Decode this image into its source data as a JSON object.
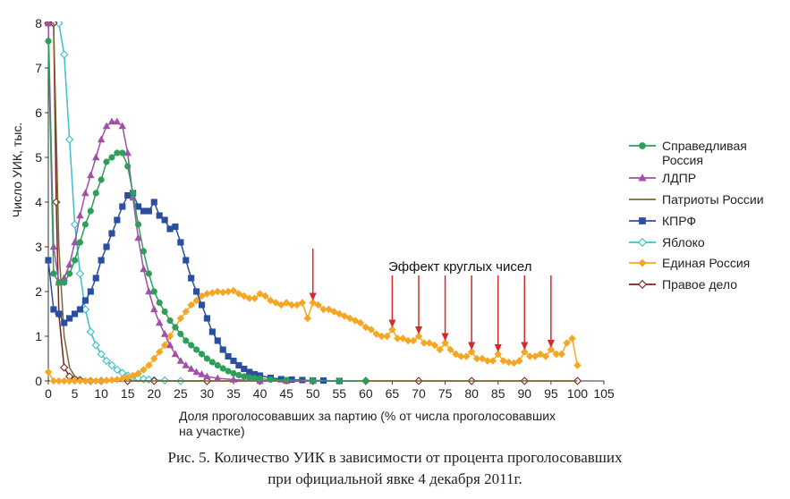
{
  "caption": {
    "line1": "Рис. 5. Количество УИК в зависимости от процента проголосовавших",
    "line2": "при официальной явке 4 декабря 2011г."
  },
  "chart_data": {
    "type": "line",
    "title": "",
    "xlabel_line1": "Доля проголосовавших за партию (% от числа проголосовавших",
    "xlabel_line2": "на участке)",
    "ylabel": "Число УИК, тыс.",
    "xlim": [
      0,
      105
    ],
    "ylim": [
      0,
      8
    ],
    "x_ticks": [
      0,
      5,
      10,
      15,
      20,
      25,
      30,
      35,
      40,
      45,
      50,
      55,
      60,
      65,
      70,
      75,
      80,
      85,
      90,
      95,
      100,
      105
    ],
    "y_ticks": [
      0,
      1,
      2,
      3,
      4,
      5,
      6,
      7,
      8
    ],
    "grid": false,
    "legend_position": "right",
    "annotation": {
      "text": "Эффект круглых чисел",
      "arrow_x": [
        50,
        65,
        70,
        75,
        80,
        85,
        90,
        95
      ]
    },
    "series": [
      {
        "name_line1": "Справедливая",
        "name_line2": "Россия",
        "color": "#2e9e5b",
        "marker": "circle",
        "x": [
          0,
          1,
          2,
          3,
          4,
          5,
          6,
          7,
          8,
          9,
          10,
          11,
          12,
          13,
          14,
          15,
          16,
          17,
          18,
          19,
          20,
          21,
          22,
          23,
          24,
          25,
          26,
          27,
          28,
          29,
          30,
          31,
          32,
          33,
          34,
          35,
          36,
          37,
          38,
          39,
          40,
          42,
          45,
          50,
          55,
          60
        ],
        "y": [
          7.6,
          2.4,
          2.2,
          2.2,
          2.4,
          2.7,
          3.1,
          3.5,
          3.8,
          4.2,
          4.5,
          4.9,
          5.0,
          5.1,
          5.1,
          4.8,
          4.2,
          3.5,
          2.9,
          2.4,
          2.0,
          1.75,
          1.55,
          1.35,
          1.2,
          1.05,
          0.9,
          0.8,
          0.7,
          0.6,
          0.5,
          0.42,
          0.35,
          0.28,
          0.22,
          0.17,
          0.13,
          0.1,
          0.08,
          0.06,
          0.05,
          0.03,
          0.02,
          0.01,
          0.0,
          0.0
        ]
      },
      {
        "name": "ЛДПР",
        "color": "#a24fa8",
        "marker": "triangle",
        "x": [
          0,
          1,
          2,
          3,
          4,
          5,
          6,
          7,
          8,
          9,
          10,
          11,
          12,
          13,
          14,
          15,
          16,
          17,
          18,
          19,
          20,
          21,
          22,
          23,
          24,
          25,
          26,
          27,
          28,
          29,
          30,
          32,
          35,
          40,
          45,
          50
        ],
        "y": [
          8.0,
          3.0,
          2.2,
          2.3,
          2.6,
          3.1,
          3.7,
          4.2,
          4.6,
          5.0,
          5.4,
          5.7,
          5.8,
          5.8,
          5.7,
          5.1,
          4.1,
          3.2,
          2.5,
          2.0,
          1.6,
          1.3,
          1.05,
          0.8,
          0.6,
          0.45,
          0.35,
          0.27,
          0.2,
          0.15,
          0.1,
          0.06,
          0.03,
          0.0,
          0.0,
          0.0
        ]
      },
      {
        "name": "Патриоты России",
        "color": "#7a6a2e",
        "marker": "none",
        "x": [
          0,
          1,
          1.5,
          2,
          3,
          4,
          5,
          6,
          8,
          10,
          15,
          20,
          30,
          40,
          60,
          80,
          100
        ],
        "y": [
          8.0,
          8.0,
          5.5,
          3.0,
          1.0,
          0.3,
          0.1,
          0.05,
          0.02,
          0.01,
          0.0,
          0.0,
          0.0,
          0.0,
          0.0,
          0.0,
          0.0
        ]
      },
      {
        "name": "КПРФ",
        "color": "#2b4f9e",
        "marker": "square",
        "x": [
          0,
          1,
          2,
          3,
          4,
          5,
          6,
          7,
          8,
          9,
          10,
          11,
          12,
          13,
          14,
          15,
          16,
          17,
          18,
          19,
          20,
          21,
          22,
          23,
          24,
          25,
          26,
          27,
          28,
          29,
          30,
          31,
          32,
          33,
          34,
          35,
          36,
          37,
          38,
          39,
          40,
          42,
          44,
          46,
          48,
          50,
          52,
          55
        ],
        "y": [
          2.7,
          1.6,
          1.5,
          1.3,
          1.4,
          1.5,
          1.6,
          1.8,
          2.0,
          2.3,
          2.7,
          3.0,
          3.3,
          3.6,
          3.9,
          4.15,
          4.2,
          3.9,
          3.8,
          3.8,
          4.0,
          3.7,
          3.6,
          3.4,
          3.45,
          3.1,
          2.7,
          2.3,
          2.0,
          1.7,
          1.4,
          1.1,
          0.9,
          0.7,
          0.55,
          0.45,
          0.35,
          0.27,
          0.2,
          0.15,
          0.12,
          0.07,
          0.04,
          0.03,
          0.02,
          0.01,
          0.01,
          0.0
        ]
      },
      {
        "name": "Яблоко",
        "color": "#3bbfc9",
        "marker": "diamond-open",
        "x": [
          0,
          1,
          2,
          3,
          4,
          5,
          6,
          7,
          8,
          9,
          10,
          11,
          12,
          13,
          14,
          15,
          16,
          17,
          18,
          19,
          20,
          22,
          25,
          30
        ],
        "y": [
          8.0,
          8.0,
          8.0,
          7.3,
          5.4,
          3.5,
          2.4,
          1.6,
          1.1,
          0.8,
          0.6,
          0.45,
          0.35,
          0.25,
          0.18,
          0.12,
          0.08,
          0.06,
          0.04,
          0.03,
          0.02,
          0.01,
          0.0,
          0.0
        ]
      },
      {
        "name": "Единая Россия",
        "color": "#f5a623",
        "marker": "diamond",
        "x": [
          0,
          1,
          2,
          3,
          4,
          5,
          6,
          7,
          8,
          9,
          10,
          11,
          12,
          13,
          14,
          15,
          16,
          17,
          18,
          19,
          20,
          21,
          22,
          23,
          24,
          25,
          26,
          27,
          28,
          29,
          30,
          31,
          32,
          33,
          34,
          35,
          36,
          37,
          38,
          39,
          40,
          41,
          42,
          43,
          44,
          45,
          46,
          47,
          48,
          49,
          50,
          51,
          52,
          53,
          54,
          55,
          56,
          57,
          58,
          59,
          60,
          61,
          62,
          63,
          64,
          65,
          66,
          67,
          68,
          69,
          70,
          71,
          72,
          73,
          74,
          75,
          76,
          77,
          78,
          79,
          80,
          81,
          82,
          83,
          84,
          85,
          86,
          87,
          88,
          89,
          90,
          91,
          92,
          93,
          94,
          95,
          96,
          97,
          98,
          99,
          100
        ],
        "y": [
          0.2,
          0.0,
          0.0,
          0.0,
          0.0,
          0.0,
          0.0,
          0.0,
          0.0,
          0.0,
          0.0,
          0.01,
          0.02,
          0.03,
          0.05,
          0.08,
          0.12,
          0.17,
          0.25,
          0.35,
          0.5,
          0.65,
          0.8,
          1.0,
          1.2,
          1.4,
          1.55,
          1.7,
          1.8,
          1.9,
          1.95,
          1.97,
          2.0,
          1.98,
          2.0,
          2.02,
          1.95,
          1.9,
          1.85,
          1.85,
          1.95,
          1.9,
          1.8,
          1.75,
          1.7,
          1.75,
          1.7,
          1.7,
          1.75,
          1.4,
          1.75,
          1.7,
          1.6,
          1.6,
          1.55,
          1.5,
          1.45,
          1.4,
          1.35,
          1.3,
          1.2,
          1.15,
          1.05,
          1.0,
          1.0,
          1.15,
          0.95,
          0.95,
          0.9,
          0.9,
          1.0,
          0.85,
          0.85,
          0.8,
          0.7,
          0.85,
          0.7,
          0.6,
          0.55,
          0.55,
          0.65,
          0.5,
          0.5,
          0.45,
          0.45,
          0.6,
          0.45,
          0.42,
          0.4,
          0.45,
          0.65,
          0.55,
          0.55,
          0.6,
          0.55,
          0.7,
          0.6,
          0.6,
          0.85,
          0.95,
          0.35
        ]
      },
      {
        "name": "Правое дело",
        "color": "#7a2222",
        "marker": "diamond-open",
        "x": [
          0,
          1,
          1.5,
          2,
          3,
          4,
          5,
          6,
          8,
          10,
          15,
          20,
          30,
          40,
          50,
          60,
          70,
          80,
          90,
          100
        ],
        "y": [
          8.0,
          8.0,
          4.0,
          1.5,
          0.3,
          0.1,
          0.04,
          0.02,
          0.0,
          0.0,
          0.0,
          0.0,
          0.0,
          0.0,
          0.0,
          0.0,
          0.0,
          0.0,
          0.0,
          0.0
        ]
      }
    ]
  }
}
